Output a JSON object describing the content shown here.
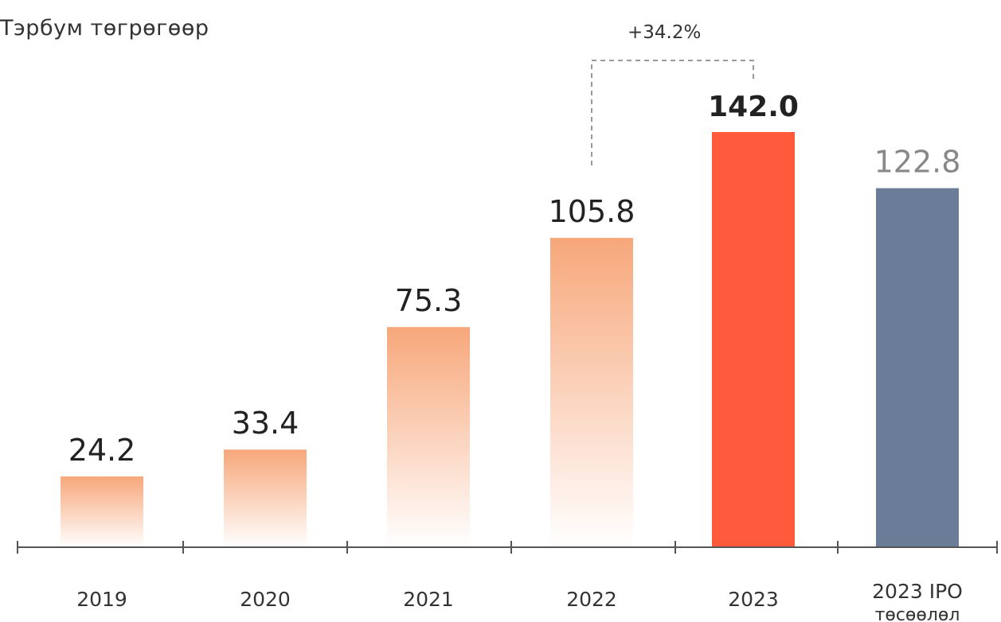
{
  "chart_data": {
    "type": "bar",
    "unit_label": "Тэрбум төгрөгөөр",
    "categories": [
      "2019",
      "2020",
      "2021",
      "2022",
      "2023",
      "2023 IPO\nтөсөөлөл"
    ],
    "values": [
      24.2,
      33.4,
      75.3,
      105.8,
      142.0,
      122.8
    ],
    "value_labels": [
      "24.2",
      "33.4",
      "75.3",
      "105.8",
      "142.0",
      "122.8"
    ],
    "annotation": "+34.2%",
    "ylim": [
      0,
      142.0
    ],
    "grid": false,
    "colors": {
      "gradient_top": "#F7A77A",
      "highlight": "#FF5A3C",
      "projection": "#6B7C99",
      "axis": "#555555",
      "label": "#222222",
      "projection_label": "#888888"
    }
  }
}
